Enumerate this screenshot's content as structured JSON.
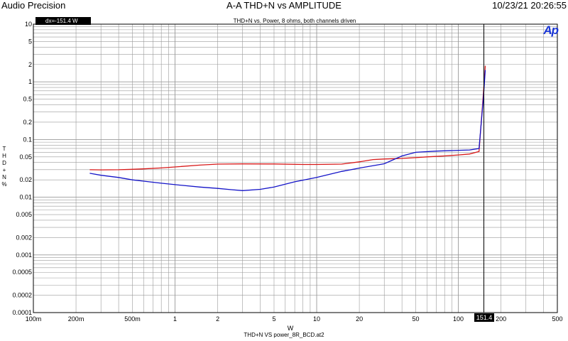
{
  "header": {
    "brand": "Audio Precision",
    "title": "A-A THD+N vs AMPLITUDE",
    "timestamp": "10/23/21 20:26:55"
  },
  "readout": {
    "text": "dx=-151.4  W"
  },
  "cursor": {
    "x": 151.4,
    "label": "151.4"
  },
  "footer": {
    "filename": "THD+N VS power_8R_BCD.at2"
  },
  "logo": {
    "text": "Ap"
  },
  "colors": {
    "channel_a": "#d81818",
    "channel_b": "#1414c8",
    "grid": "#9a9a9a",
    "logo": "#1a36d6"
  },
  "chart_data": {
    "type": "line",
    "title": "THD+N vs. Power, 8 ohms, both channels driven",
    "xlabel": "W",
    "ylabel": "THD+N %",
    "xscale": "log",
    "yscale": "log",
    "xlim": [
      0.1,
      500
    ],
    "ylim": [
      0.0001,
      10
    ],
    "grid": true,
    "xticks": [
      {
        "v": 0.1,
        "label": "100m"
      },
      {
        "v": 0.2,
        "label": "200m"
      },
      {
        "v": 0.5,
        "label": "500m"
      },
      {
        "v": 1,
        "label": "1"
      },
      {
        "v": 2,
        "label": "2"
      },
      {
        "v": 5,
        "label": "5"
      },
      {
        "v": 10,
        "label": "10"
      },
      {
        "v": 20,
        "label": "20"
      },
      {
        "v": 50,
        "label": "50"
      },
      {
        "v": 100,
        "label": "100"
      },
      {
        "v": 200,
        "label": "200"
      },
      {
        "v": 500,
        "label": "500"
      }
    ],
    "yticks": [
      {
        "v": 10,
        "label": "10"
      },
      {
        "v": 5,
        "label": "5"
      },
      {
        "v": 2,
        "label": "2"
      },
      {
        "v": 1,
        "label": "1"
      },
      {
        "v": 0.5,
        "label": "0.5"
      },
      {
        "v": 0.2,
        "label": "0.2"
      },
      {
        "v": 0.1,
        "label": "0.1"
      },
      {
        "v": 0.05,
        "label": "0.05"
      },
      {
        "v": 0.02,
        "label": "0.02"
      },
      {
        "v": 0.01,
        "label": "0.01"
      },
      {
        "v": 0.005,
        "label": "0.005"
      },
      {
        "v": 0.002,
        "label": "0.002"
      },
      {
        "v": 0.001,
        "label": "0.001"
      },
      {
        "v": 0.0005,
        "label": "0.0005"
      },
      {
        "v": 0.0002,
        "label": "0.0002"
      },
      {
        "v": 0.0001,
        "label": "0.0001"
      }
    ],
    "series": [
      {
        "color": "#d81818",
        "x": [
          0.25,
          0.3,
          0.4,
          0.5,
          0.6,
          0.8,
          1,
          1.5,
          2,
          3,
          5,
          8,
          10,
          15,
          20,
          25,
          30,
          40,
          50,
          60,
          80,
          100,
          120,
          140,
          150,
          155
        ],
        "y": [
          0.03,
          0.0298,
          0.03,
          0.0305,
          0.031,
          0.0322,
          0.0335,
          0.036,
          0.0375,
          0.0378,
          0.0377,
          0.037,
          0.037,
          0.0375,
          0.041,
          0.045,
          0.046,
          0.047,
          0.0485,
          0.05,
          0.052,
          0.054,
          0.056,
          0.062,
          0.6,
          1.9
        ]
      },
      {
        "color": "#1414c8",
        "x": [
          0.25,
          0.3,
          0.4,
          0.5,
          0.6,
          0.8,
          1,
          1.5,
          2,
          2.5,
          3,
          4,
          5,
          7,
          10,
          15,
          20,
          30,
          40,
          50,
          70,
          100,
          120,
          140,
          150,
          155
        ],
        "y": [
          0.026,
          0.024,
          0.022,
          0.02,
          0.019,
          0.0175,
          0.0165,
          0.015,
          0.0142,
          0.0135,
          0.013,
          0.0137,
          0.015,
          0.0185,
          0.022,
          0.028,
          0.032,
          0.038,
          0.052,
          0.06,
          0.063,
          0.065,
          0.066,
          0.07,
          0.5,
          1.6
        ]
      }
    ]
  }
}
